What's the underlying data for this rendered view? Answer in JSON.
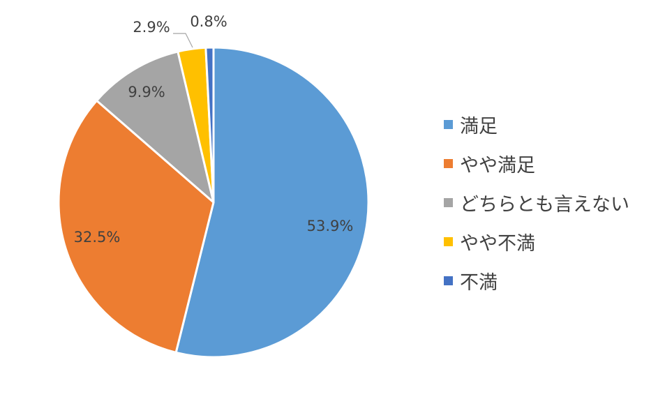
{
  "chart_data": {
    "type": "pie",
    "categories": [
      "満足",
      "やや満足",
      "どちらとも言えない",
      "やや不満",
      "不満"
    ],
    "values": [
      53.9,
      32.5,
      9.9,
      2.9,
      0.8
    ],
    "labels": [
      "53.9%",
      "32.5%",
      "9.9%",
      "2.9%",
      "0.8%"
    ],
    "colors": [
      "#5B9BD5",
      "#ED7D31",
      "#A5A5A5",
      "#FFC000",
      "#4472C4"
    ],
    "title": "",
    "legend_position": "right",
    "start_angle": "top",
    "direction": "clockwise"
  }
}
